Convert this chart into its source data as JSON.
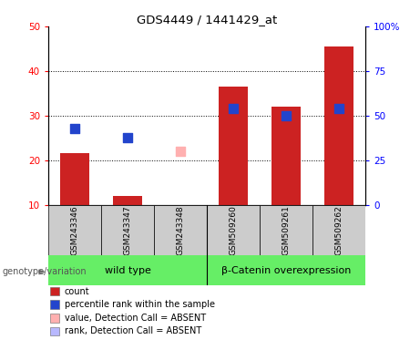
{
  "title": "GDS4449 / 1441429_at",
  "samples": [
    "GSM243346",
    "GSM243347",
    "GSM243348",
    "GSM509260",
    "GSM509261",
    "GSM509262"
  ],
  "bar_values": [
    21.5,
    12.0,
    10.0,
    36.5,
    32.0,
    45.5
  ],
  "blue_dot_values": [
    27.0,
    25.0,
    null,
    31.5,
    30.0,
    31.5
  ],
  "absent_value": [
    null,
    null,
    22.0,
    null,
    null,
    null
  ],
  "absent_rank": [
    null,
    null,
    null,
    null,
    null,
    null
  ],
  "ylim_left": [
    10,
    50
  ],
  "ylim_right": [
    0,
    100
  ],
  "yticks_left": [
    10,
    20,
    30,
    40,
    50
  ],
  "ytick_labels_right": [
    "0",
    "25",
    "50",
    "75",
    "100%"
  ],
  "grid_values": [
    20,
    30,
    40
  ],
  "bar_color": "#cc2222",
  "blue_dot_color": "#2244cc",
  "absent_value_color": "#ffb0b0",
  "absent_rank_color": "#b8b8ff",
  "group1_label": "wild type",
  "group2_label": "β-Catenin overexpression",
  "group1_bg": "#66ee66",
  "group2_bg": "#66ee66",
  "xticklabel_area_bg": "#cccccc",
  "legend_items": [
    {
      "label": "count",
      "color": "#cc2222"
    },
    {
      "label": "percentile rank within the sample",
      "color": "#2244cc"
    },
    {
      "label": "value, Detection Call = ABSENT",
      "color": "#ffb0b0"
    },
    {
      "label": "rank, Detection Call = ABSENT",
      "color": "#b8b8ff"
    }
  ],
  "genotype_label": "genotype/variation",
  "bar_width": 0.55,
  "dot_size": 55
}
